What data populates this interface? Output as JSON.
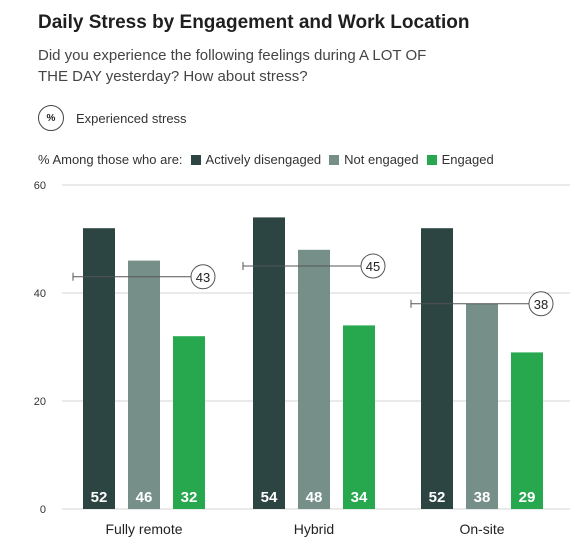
{
  "header": {
    "title": "Daily Stress by Engagement and Work Location",
    "subtitle": "Did you experience the following feelings during A LOT OF THE DAY yesterday? How about stress?",
    "unit_badge": "%",
    "unit_label": "Experienced stress"
  },
  "legend": {
    "prefix": "% Among those who are:",
    "items": [
      {
        "label": "Actively disengaged",
        "color": "#2c4542"
      },
      {
        "label": "Not engaged",
        "color": "#768f88"
      },
      {
        "label": "Engaged",
        "color": "#27a84f"
      }
    ]
  },
  "chart_data": {
    "type": "bar",
    "categories": [
      "Fully remote",
      "Hybrid",
      "On-site"
    ],
    "series": [
      {
        "name": "Actively disengaged",
        "values": [
          52,
          54,
          52
        ],
        "color": "#2c4542"
      },
      {
        "name": "Not engaged",
        "values": [
          46,
          48,
          38
        ],
        "color": "#768f88"
      },
      {
        "name": "Engaged",
        "values": [
          32,
          34,
          29
        ],
        "color": "#27a84f"
      }
    ],
    "overall": [
      43,
      45,
      38
    ],
    "ylim": [
      0,
      60
    ],
    "yticks": [
      0,
      20,
      40,
      60
    ],
    "grid": true
  }
}
